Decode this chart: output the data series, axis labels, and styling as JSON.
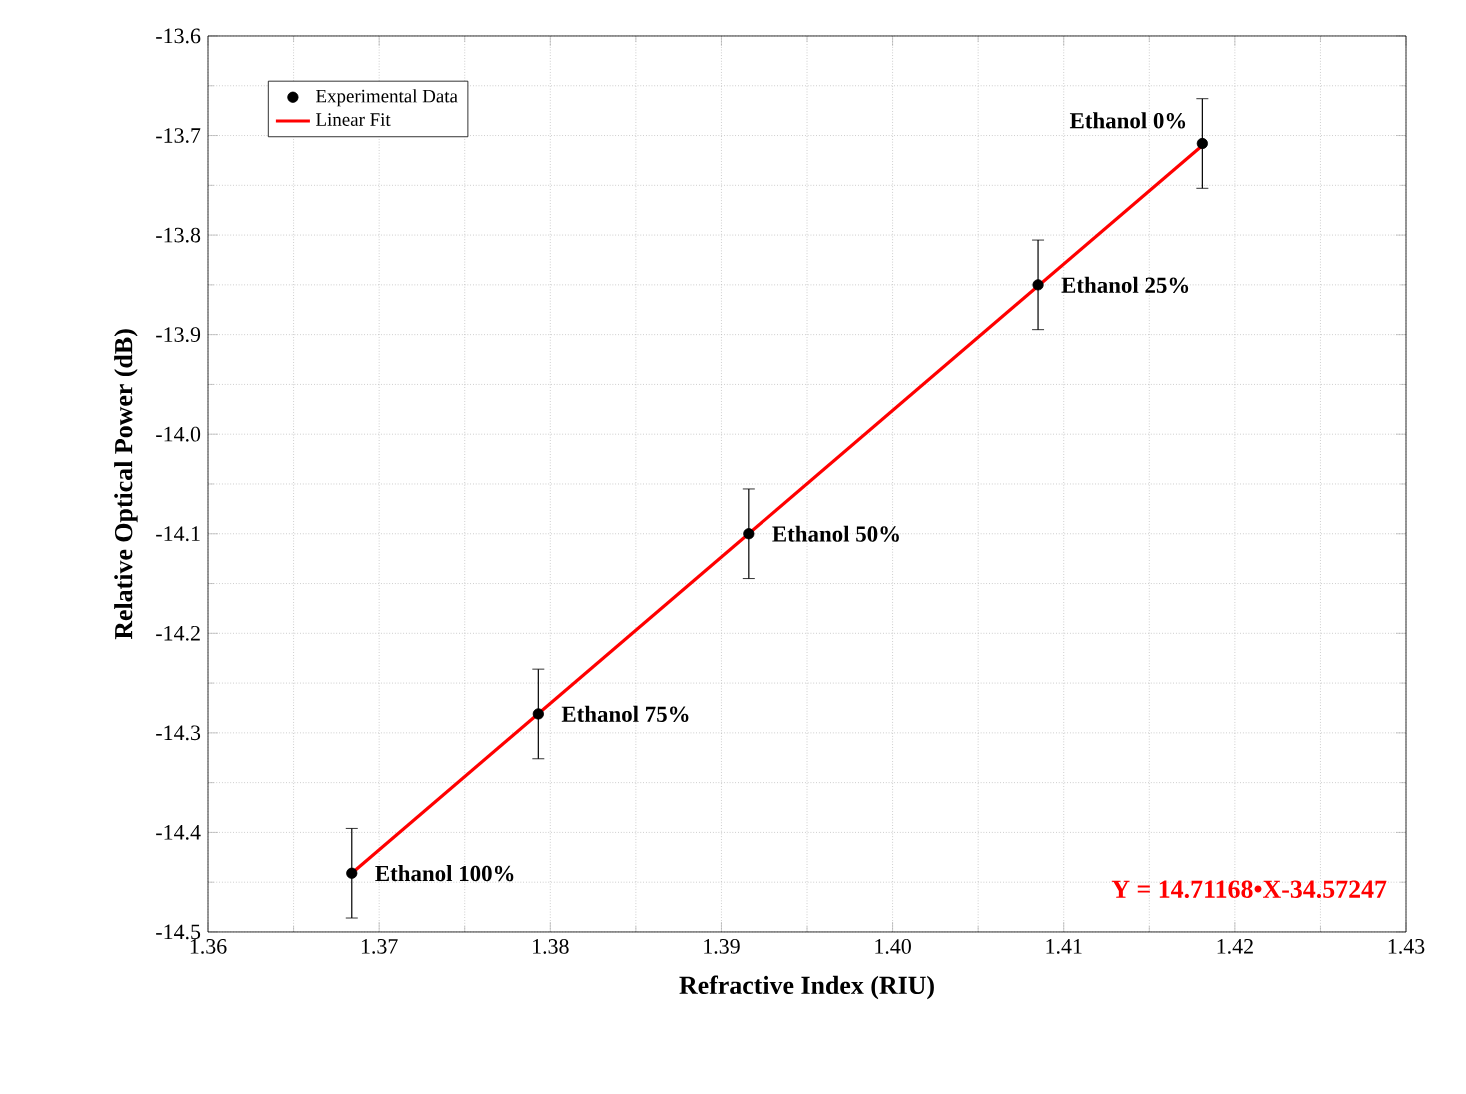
{
  "chart_data": {
    "type": "scatter",
    "xlabel": "Refractive Index (RIU)",
    "ylabel": "Relative Optical Power (dB)",
    "xlim": [
      1.36,
      1.43
    ],
    "ylim": [
      -14.5,
      -13.6
    ],
    "xticks": [
      1.36,
      1.37,
      1.38,
      1.39,
      {
        "value": 1.4,
        "label": "1.40"
      },
      1.41,
      1.42,
      1.43
    ],
    "yticks": [
      -14.5,
      -14.4,
      -14.3,
      -14.2,
      -14.1,
      {
        "value": -14.0,
        "label": "-14.0"
      },
      -13.9,
      -13.8,
      -13.7,
      -13.6
    ],
    "grid": true,
    "legend": "top left",
    "marker": "circle",
    "series": [
      {
        "name": "Experimental Data",
        "color": "#000000",
        "x": [
          1.3684,
          1.3793,
          1.3916,
          1.4085,
          1.4181
        ],
        "values": [
          -14.441,
          -14.281,
          -14.1,
          -13.85,
          -13.708
        ],
        "errors": [
          0.045,
          0.045,
          0.045,
          0.045,
          0.045
        ]
      },
      {
        "name": "Linear Fit",
        "type": "line",
        "color": "#ff0000",
        "marker": "none",
        "line_style": "solid",
        "x": [
          1.3684,
          1.4181
        ],
        "values": [
          -14.441,
          -13.71
        ]
      }
    ],
    "annotations": [
      {
        "text": "Ethanol 100%",
        "x": 1.3684,
        "y": -14.441
      },
      {
        "text": "Ethanol 75%",
        "x": 1.3793,
        "y": -14.281
      },
      {
        "text": "Ethanol 50%",
        "x": 1.3916,
        "y": -14.1
      },
      {
        "text": "Ethanol 25%",
        "x": 1.4085,
        "y": -13.85
      },
      {
        "text": "Ethanol 0%",
        "x": 1.4181,
        "y": -13.708
      },
      "Y = 14.71168•X-34.57247"
    ]
  }
}
